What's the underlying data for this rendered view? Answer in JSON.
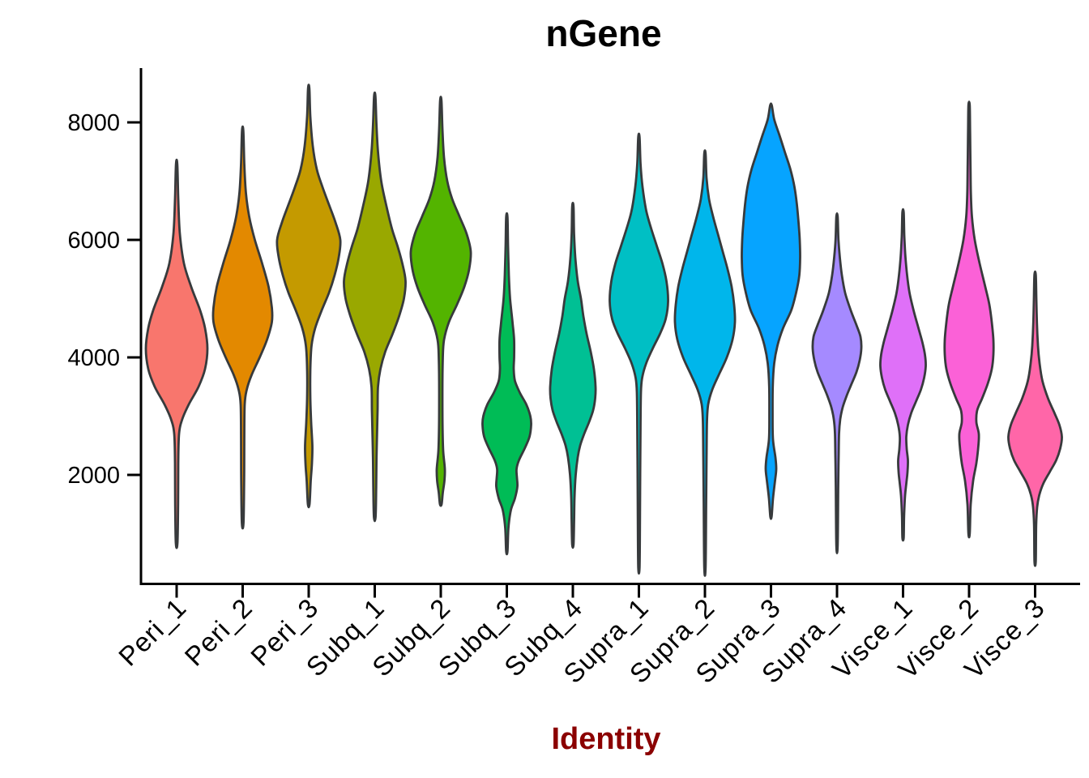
{
  "title": "nGene",
  "x_axis_title": "Identity",
  "colors": {
    "background": "#FFFFFF",
    "axis": "#000000",
    "tick_text": "#000000",
    "title_text": "#000000",
    "x_axis_title_text": "#8B0000",
    "violin_outline": "#373A3C"
  },
  "y_axis": {
    "tick_labels": [
      "2000",
      "4000",
      "6000",
      "8000"
    ],
    "tick_values": [
      2000,
      4000,
      6000,
      8000
    ]
  },
  "chart_data": {
    "type": "violin",
    "title": "nGene",
    "xlabel": "Identity",
    "ylabel": "",
    "legend": "none",
    "grid": false,
    "ylim": [
      150,
      8930
    ],
    "y_ticks": [
      2000,
      4000,
      6000,
      8000
    ],
    "categories": [
      "Peri_1",
      "Peri_2",
      "Peri_3",
      "Subq_1",
      "Subq_2",
      "Subq_3",
      "Subq_4",
      "Supra_1",
      "Supra_2",
      "Supra_3",
      "Supra_4",
      "Visce_1",
      "Visce_2",
      "Visce_3"
    ],
    "series": [
      {
        "name": "Peri_1",
        "color": "#F8766D",
        "min": 840,
        "max": 7290,
        "peak": 4150,
        "profile": [
          [
            7290,
            0.8
          ],
          [
            6700,
            2
          ],
          [
            6100,
            4
          ],
          [
            5600,
            9
          ],
          [
            5200,
            18
          ],
          [
            4800,
            29
          ],
          [
            4500,
            35
          ],
          [
            4150,
            38
          ],
          [
            3800,
            35
          ],
          [
            3500,
            27
          ],
          [
            3200,
            15
          ],
          [
            2950,
            7
          ],
          [
            2700,
            3
          ],
          [
            2200,
            2
          ],
          [
            1500,
            1.8
          ],
          [
            840,
            1
          ]
        ]
      },
      {
        "name": "Peri_2",
        "color": "#E38900",
        "min": 1180,
        "max": 7860,
        "peak": 4700,
        "profile": [
          [
            7860,
            0.8
          ],
          [
            7300,
            2
          ],
          [
            6800,
            4
          ],
          [
            6400,
            8
          ],
          [
            6000,
            15
          ],
          [
            5600,
            24
          ],
          [
            5200,
            32
          ],
          [
            4850,
            36
          ],
          [
            4600,
            36
          ],
          [
            4300,
            30
          ],
          [
            4000,
            21
          ],
          [
            3700,
            11
          ],
          [
            3450,
            5
          ],
          [
            3200,
            2.5
          ],
          [
            2600,
            2
          ],
          [
            1900,
            1.8
          ],
          [
            1180,
            1
          ]
        ]
      },
      {
        "name": "Peri_3",
        "color": "#C49A00",
        "min": 1500,
        "max": 8580,
        "peak": 5950,
        "profile": [
          [
            8580,
            0.8
          ],
          [
            8100,
            2
          ],
          [
            7600,
            5
          ],
          [
            7200,
            10
          ],
          [
            6900,
            17
          ],
          [
            6600,
            25
          ],
          [
            6300,
            33
          ],
          [
            6000,
            39
          ],
          [
            5700,
            37
          ],
          [
            5400,
            32
          ],
          [
            5100,
            25
          ],
          [
            4800,
            16
          ],
          [
            4500,
            8
          ],
          [
            4200,
            3.5
          ],
          [
            3800,
            2
          ],
          [
            3300,
            2
          ],
          [
            2900,
            3
          ],
          [
            2500,
            4.5
          ],
          [
            2200,
            4
          ],
          [
            1900,
            2.5
          ],
          [
            1500,
            1
          ]
        ]
      },
      {
        "name": "Subq_1",
        "color": "#99A800",
        "min": 1280,
        "max": 8450,
        "peak": 5300,
        "profile": [
          [
            8450,
            0.8
          ],
          [
            8000,
            2
          ],
          [
            7500,
            4
          ],
          [
            7000,
            8
          ],
          [
            6600,
            14
          ],
          [
            6200,
            21
          ],
          [
            5900,
            28
          ],
          [
            5600,
            34
          ],
          [
            5300,
            38
          ],
          [
            5000,
            36
          ],
          [
            4700,
            30
          ],
          [
            4400,
            22
          ],
          [
            4100,
            13
          ],
          [
            3800,
            7
          ],
          [
            3500,
            4
          ],
          [
            3100,
            3.5
          ],
          [
            2800,
            3
          ],
          [
            2300,
            2.2
          ],
          [
            1800,
            1.8
          ],
          [
            1280,
            1
          ]
        ]
      },
      {
        "name": "Subq_2",
        "color": "#53B400",
        "min": 1500,
        "max": 8375,
        "peak": 5800,
        "profile": [
          [
            8375,
            0.8
          ],
          [
            7900,
            2
          ],
          [
            7400,
            4
          ],
          [
            7000,
            8
          ],
          [
            6700,
            14
          ],
          [
            6400,
            23
          ],
          [
            6100,
            32
          ],
          [
            5800,
            37
          ],
          [
            5500,
            35
          ],
          [
            5200,
            29
          ],
          [
            4900,
            20
          ],
          [
            4600,
            10
          ],
          [
            4300,
            4
          ],
          [
            4000,
            2.5
          ],
          [
            3400,
            2
          ],
          [
            2800,
            2.2
          ],
          [
            2400,
            3
          ],
          [
            2100,
            5
          ],
          [
            1900,
            4.5
          ],
          [
            1700,
            2.5
          ],
          [
            1500,
            1
          ]
        ]
      },
      {
        "name": "Subq_3",
        "color": "#00BC56",
        "min": 700,
        "max": 6390,
        "peak": 2850,
        "profile": [
          [
            6390,
            0.8
          ],
          [
            5900,
            1.5
          ],
          [
            5400,
            2.5
          ],
          [
            5000,
            4
          ],
          [
            4600,
            7
          ],
          [
            4300,
            9
          ],
          [
            4000,
            9
          ],
          [
            3800,
            8.5
          ],
          [
            3600,
            10
          ],
          [
            3400,
            16
          ],
          [
            3200,
            24
          ],
          [
            3000,
            29
          ],
          [
            2850,
            30
          ],
          [
            2650,
            28
          ],
          [
            2450,
            22
          ],
          [
            2250,
            15
          ],
          [
            2100,
            12
          ],
          [
            1950,
            12.5
          ],
          [
            1800,
            13
          ],
          [
            1600,
            10
          ],
          [
            1400,
            5
          ],
          [
            1100,
            2
          ],
          [
            700,
            0.8
          ]
        ]
      },
      {
        "name": "Subq_4",
        "color": "#00C094",
        "min": 810,
        "max": 6570,
        "peak": 3450,
        "profile": [
          [
            6570,
            0.8
          ],
          [
            6100,
            1.5
          ],
          [
            5700,
            3
          ],
          [
            5300,
            6
          ],
          [
            5000,
            10
          ],
          [
            4700,
            13
          ],
          [
            4400,
            17
          ],
          [
            4100,
            22
          ],
          [
            3800,
            26
          ],
          [
            3500,
            28
          ],
          [
            3300,
            27.5
          ],
          [
            3100,
            25
          ],
          [
            2900,
            20
          ],
          [
            2700,
            14
          ],
          [
            2500,
            9
          ],
          [
            2300,
            6
          ],
          [
            2000,
            3.5
          ],
          [
            1600,
            2
          ],
          [
            1200,
            1.5
          ],
          [
            810,
            0.8
          ]
        ]
      },
      {
        "name": "Supra_1",
        "color": "#00BFC4",
        "min": 420,
        "max": 7750,
        "peak": 4950,
        "profile": [
          [
            7750,
            0.8
          ],
          [
            7300,
            2
          ],
          [
            6900,
            4.5
          ],
          [
            6500,
            9
          ],
          [
            6200,
            15
          ],
          [
            5900,
            22
          ],
          [
            5600,
            29
          ],
          [
            5300,
            34
          ],
          [
            4950,
            36
          ],
          [
            4650,
            33
          ],
          [
            4400,
            26
          ],
          [
            4150,
            17
          ],
          [
            3900,
            9
          ],
          [
            3650,
            4
          ],
          [
            3400,
            2.5
          ],
          [
            2800,
            2
          ],
          [
            2000,
            1.6
          ],
          [
            1200,
            1.3
          ],
          [
            420,
            0.8
          ]
        ]
      },
      {
        "name": "Supra_2",
        "color": "#00B6EB",
        "min": 420,
        "max": 7470,
        "peak": 4600,
        "profile": [
          [
            7470,
            0.8
          ],
          [
            7050,
            2
          ],
          [
            6700,
            5
          ],
          [
            6400,
            10
          ],
          [
            6100,
            16
          ],
          [
            5800,
            22
          ],
          [
            5500,
            28
          ],
          [
            5200,
            33
          ],
          [
            4900,
            36
          ],
          [
            4600,
            37
          ],
          [
            4300,
            34
          ],
          [
            4000,
            27
          ],
          [
            3700,
            17
          ],
          [
            3450,
            9
          ],
          [
            3200,
            4
          ],
          [
            2900,
            2.5
          ],
          [
            2300,
            2
          ],
          [
            1500,
            1.5
          ],
          [
            420,
            0.8
          ]
        ]
      },
      {
        "name": "Supra_3",
        "color": "#06A4FF",
        "min": 1290,
        "max": 8290,
        "peak": 5700,
        "profile": [
          [
            8290,
            1
          ],
          [
            8050,
            4
          ],
          [
            7800,
            10
          ],
          [
            7500,
            17
          ],
          [
            7200,
            24
          ],
          [
            6900,
            29
          ],
          [
            6600,
            32
          ],
          [
            6300,
            34
          ],
          [
            6000,
            35.5
          ],
          [
            5700,
            36
          ],
          [
            5400,
            35
          ],
          [
            5100,
            31
          ],
          [
            4800,
            25
          ],
          [
            4500,
            15
          ],
          [
            4200,
            8
          ],
          [
            3900,
            4
          ],
          [
            3500,
            2.2
          ],
          [
            3000,
            2
          ],
          [
            2600,
            2.5
          ],
          [
            2300,
            5.5
          ],
          [
            2100,
            6.5
          ],
          [
            1900,
            5
          ],
          [
            1600,
            2.5
          ],
          [
            1290,
            0.8
          ]
        ]
      },
      {
        "name": "Supra_4",
        "color": "#A58AFF",
        "min": 795,
        "max": 6400,
        "peak": 4250,
        "profile": [
          [
            6400,
            0.8
          ],
          [
            6000,
            1.8
          ],
          [
            5700,
            3.5
          ],
          [
            5400,
            6
          ],
          [
            5100,
            10
          ],
          [
            4800,
            17
          ],
          [
            4550,
            24
          ],
          [
            4350,
            29
          ],
          [
            4150,
            30
          ],
          [
            3950,
            28
          ],
          [
            3750,
            24
          ],
          [
            3550,
            18
          ],
          [
            3350,
            12
          ],
          [
            3150,
            7
          ],
          [
            2950,
            4
          ],
          [
            2700,
            2.5
          ],
          [
            2300,
            2
          ],
          [
            1800,
            1.5
          ],
          [
            795,
            0.8
          ]
        ]
      },
      {
        "name": "Visce_1",
        "color": "#DF70F8",
        "min": 930,
        "max": 6470,
        "peak": 3900,
        "profile": [
          [
            6470,
            0.8
          ],
          [
            6050,
            1.6
          ],
          [
            5700,
            3
          ],
          [
            5400,
            5
          ],
          [
            5100,
            8
          ],
          [
            4800,
            13
          ],
          [
            4500,
            19
          ],
          [
            4250,
            24
          ],
          [
            4050,
            27
          ],
          [
            3850,
            28
          ],
          [
            3650,
            26
          ],
          [
            3450,
            22
          ],
          [
            3250,
            16
          ],
          [
            3050,
            10
          ],
          [
            2850,
            6
          ],
          [
            2650,
            4
          ],
          [
            2450,
            4.5
          ],
          [
            2250,
            6
          ],
          [
            2050,
            5.5
          ],
          [
            1850,
            4
          ],
          [
            1650,
            2.5
          ],
          [
            1300,
            1.3
          ],
          [
            930,
            0.8
          ]
        ]
      },
      {
        "name": "Visce_2",
        "color": "#FB61D7",
        "min": 1000,
        "max": 8290,
        "peak": 4050,
        "profile": [
          [
            8290,
            0.8
          ],
          [
            7800,
            1.3
          ],
          [
            7300,
            1.7
          ],
          [
            6800,
            2.2
          ],
          [
            6400,
            3.5
          ],
          [
            6000,
            7
          ],
          [
            5600,
            13
          ],
          [
            5200,
            20
          ],
          [
            4900,
            25
          ],
          [
            4600,
            28
          ],
          [
            4300,
            30
          ],
          [
            4050,
            30
          ],
          [
            3800,
            28
          ],
          [
            3550,
            23
          ],
          [
            3300,
            16
          ],
          [
            3100,
            10
          ],
          [
            2900,
            9
          ],
          [
            2700,
            12
          ],
          [
            2500,
            11.5
          ],
          [
            2200,
            9
          ],
          [
            1900,
            5
          ],
          [
            1500,
            2
          ],
          [
            1000,
            0.8
          ]
        ]
      },
      {
        "name": "Visce_3",
        "color": "#FF66A8",
        "min": 530,
        "max": 5410,
        "peak": 2650,
        "profile": [
          [
            5410,
            0.8
          ],
          [
            5000,
            1.5
          ],
          [
            4600,
            2.2
          ],
          [
            4200,
            3.5
          ],
          [
            3900,
            5.5
          ],
          [
            3600,
            9
          ],
          [
            3300,
            16
          ],
          [
            3050,
            24
          ],
          [
            2850,
            30
          ],
          [
            2650,
            33
          ],
          [
            2450,
            31
          ],
          [
            2250,
            26
          ],
          [
            2050,
            18
          ],
          [
            1850,
            10
          ],
          [
            1650,
            5
          ],
          [
            1450,
            2.5
          ],
          [
            1150,
            1.3
          ],
          [
            530,
            0.8
          ]
        ]
      }
    ]
  }
}
